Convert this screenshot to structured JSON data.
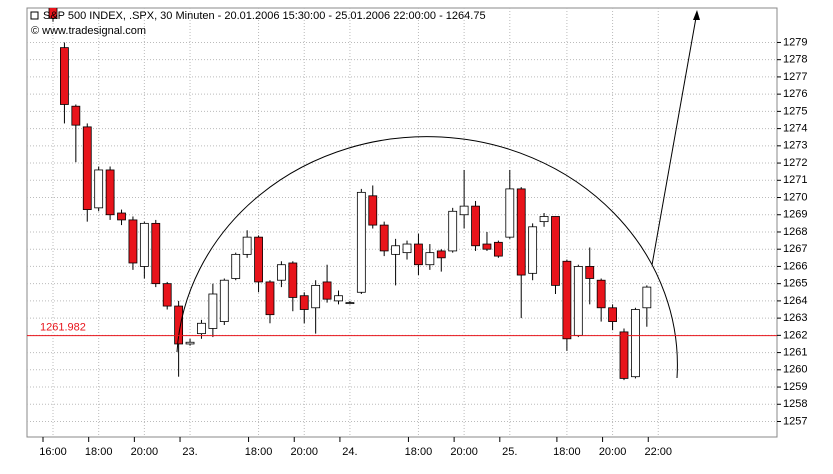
{
  "chart_data": {
    "type": "candlestick",
    "title": "S&P 500 INDEX, .SPX, 30 Minuten - 20.01.2006 15:30:00 - 25.01.2006 22:00:00 - 1264.75",
    "subtitle": "© www.tradesignal.com",
    "categories": [
      "16:00",
      null,
      null,
      null,
      "18:00",
      null,
      null,
      null,
      "20:00",
      null,
      null,
      null,
      "23.",
      null,
      null,
      null,
      null,
      null,
      "18:00",
      null,
      null,
      null,
      "20:00",
      null,
      null,
      null,
      "24.",
      null,
      null,
      null,
      null,
      null,
      "18:00",
      null,
      null,
      null,
      "20:00",
      null,
      null,
      null,
      "25.",
      null,
      null,
      null,
      null,
      "18:00",
      null,
      null,
      null,
      "20:00",
      null,
      null,
      null,
      "22:00",
      null,
      null,
      null,
      null,
      null,
      null,
      null,
      null,
      null,
      null
    ],
    "open": [
      1281.5,
      1278.7,
      1275.3,
      1274.1,
      1269.4,
      1271.6,
      1269.1,
      1268.7,
      1266.0,
      1268.5,
      1265.0,
      1263.7,
      1261.5,
      1262.1,
      1262.4,
      1262.8,
      1265.3,
      1266.7,
      1267.7,
      1265.1,
      1265.2,
      1266.2,
      1264.3,
      1263.6,
      1265.1,
      1264.0,
      1263.9,
      1264.5,
      1270.1,
      1268.4,
      1266.7,
      1266.8,
      1267.3,
      1266.1,
      1266.9,
      1266.9,
      1269.0,
      1269.5,
      1267.3,
      1267.4,
      1267.7,
      1270.5,
      1265.6,
      1268.6,
      1268.9,
      1266.3,
      1262.0,
      1266.0,
      1265.2,
      1263.6,
      1262.2,
      1259.6,
      1263.6,
      null,
      null,
      null,
      null,
      null,
      null,
      null,
      null,
      null,
      null,
      null
    ],
    "high": [
      1282,
      1279,
      1275.4,
      1274.3,
      1271.8,
      1271.8,
      1269.3,
      1268.9,
      1268.6,
      1268.7,
      1265.1,
      1264,
      1261.8,
      1262.9,
      1265,
      1265.3,
      1266.8,
      1268.1,
      1267.8,
      1265.2,
      1266.3,
      1266.3,
      1264.5,
      1265.2,
      1266.1,
      1264.6,
      1264.0,
      1270.5,
      1270.7,
      1268.6,
      1267.6,
      1267.5,
      1267.9,
      1267.3,
      1267.0,
      1269.4,
      1271.6,
      1269.8,
      1268.0,
      1267.5,
      1271.6,
      1270.6,
      1268.5,
      1269.1,
      1268.9,
      1266.4,
      1266.1,
      1267.1,
      1265.3,
      1263.8,
      1262.4,
      1263.6,
      1264.9,
      null,
      null,
      null,
      null,
      null,
      null,
      null,
      null,
      null,
      null,
      null
    ],
    "low": [
      1280.2,
      1274.3,
      1272.05,
      1268.6,
      1269.2,
      1268.7,
      1268.4,
      1265.8,
      1265.3,
      1264.8,
      1263.5,
      1259.6,
      1261.4,
      1261.8,
      1261.9,
      1262.6,
      1265.2,
      1266.5,
      1264.5,
      1262.7,
      1264.8,
      1263.4,
      1262.7,
      1262.1,
      1263.9,
      1263.8,
      1263.8,
      1264.4,
      1268.2,
      1266.6,
      1264.9,
      1266.4,
      1265.5,
      1265.8,
      1265.7,
      1266.8,
      1268.2,
      1266.9,
      1266.9,
      1266.5,
      1267.6,
      1263.0,
      1265.2,
      1268.3,
      1264.4,
      1261.1,
      1261.9,
      1263.8,
      1262.8,
      1262.3,
      1259.4,
      1259.5,
      1262.5,
      null,
      null,
      null,
      null,
      null,
      null,
      null,
      null,
      null,
      null,
      null
    ],
    "close": [
      1280.4,
      1275.4,
      1274.2,
      1269.3,
      1271.6,
      1269.0,
      1268.7,
      1266.2,
      1268.5,
      1265.0,
      1263.7,
      1261.5,
      1261.6,
      1262.7,
      1264.4,
      1265.2,
      1266.7,
      1267.7,
      1265.1,
      1263.2,
      1266.1,
      1264.2,
      1263.5,
      1264.9,
      1264.1,
      1264.3,
      1263.9,
      1270.3,
      1268.4,
      1266.9,
      1267.2,
      1267.3,
      1266.1,
      1266.8,
      1266.5,
      1269.2,
      1269.5,
      1267.2,
      1267.0,
      1266.6,
      1270.5,
      1265.5,
      1268.3,
      1268.9,
      1264.9,
      1261.8,
      1266.0,
      1265.3,
      1263.6,
      1262.8,
      1259.5,
      1263.5,
      1264.8,
      null,
      null,
      null,
      null,
      null,
      null,
      null,
      null,
      null,
      null,
      null
    ],
    "up_color": "#ffffff",
    "down_color": "#e8141b",
    "reference_line": {
      "value": 1261.982,
      "label": "1261.982",
      "color": "#e8141b"
    },
    "ylim": [
      1256.1,
      1281
    ],
    "yticks": [
      1257,
      1258,
      1259,
      1260,
      1261,
      1262,
      1263,
      1264,
      1265,
      1266,
      1267,
      1268,
      1269,
      1270,
      1271,
      1272,
      1273,
      1274,
      1275,
      1276,
      1277,
      1278,
      1279
    ],
    "grid": true
  }
}
